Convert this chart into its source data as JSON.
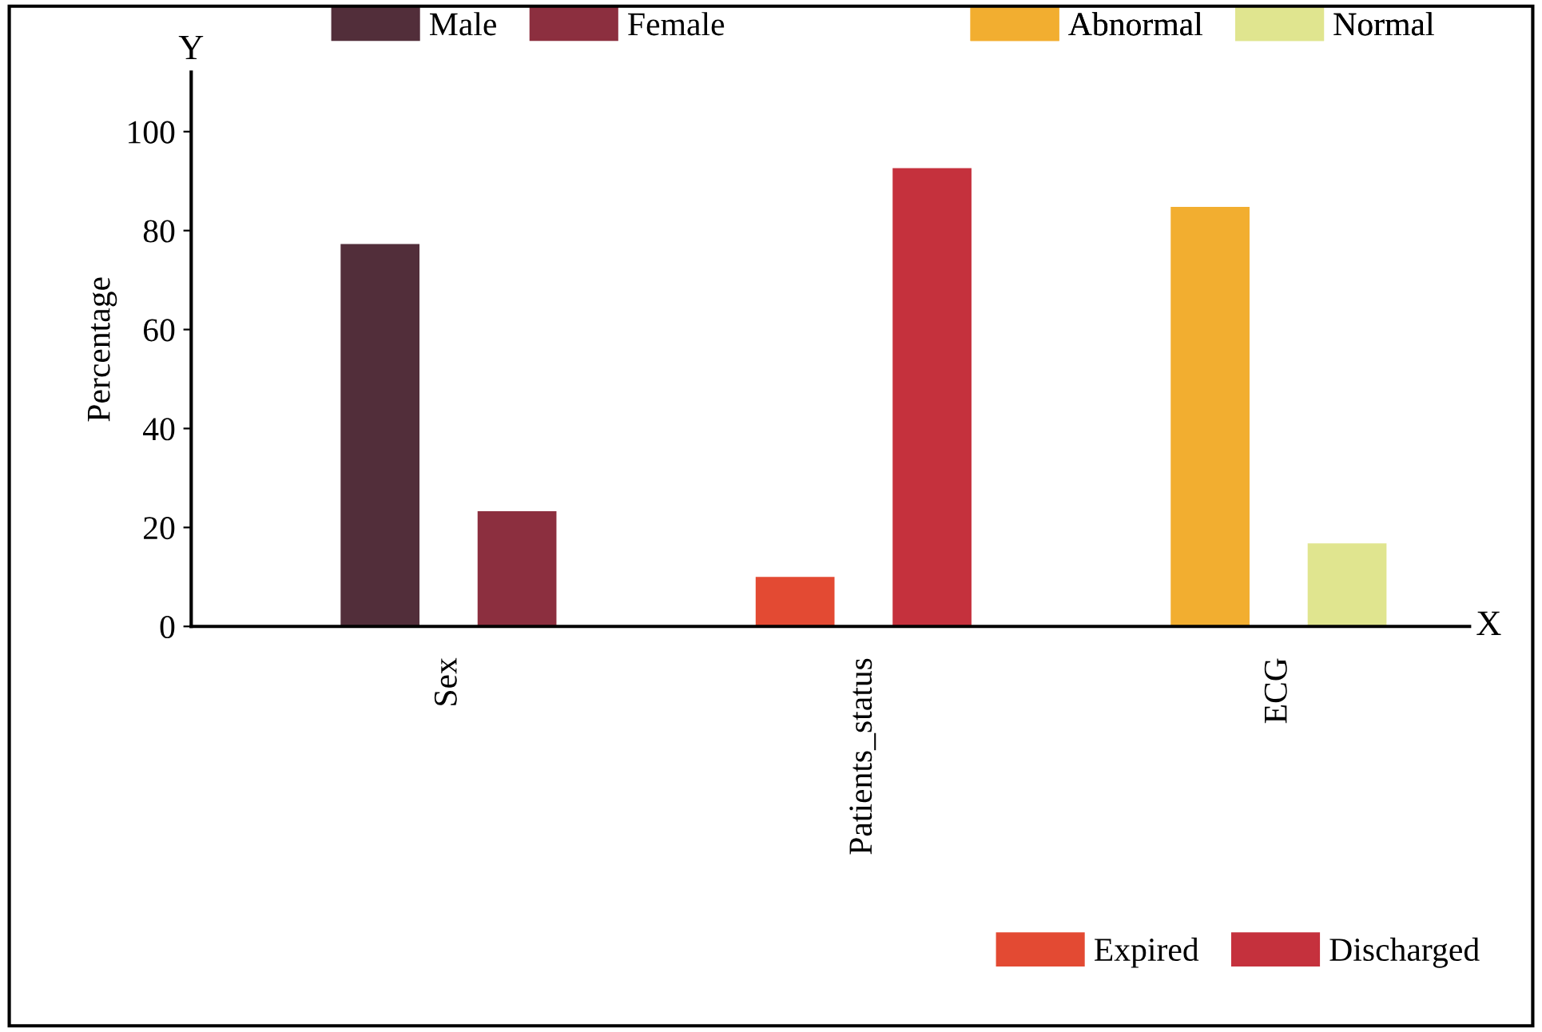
{
  "chart_data": {
    "type": "bar",
    "ylabel": "Percentage",
    "categories": [
      "Sex",
      "Patients_status",
      "ECG"
    ],
    "series": [
      {
        "name": "Male",
        "color": "#522e3a",
        "values": [
          77.3,
          null,
          null
        ]
      },
      {
        "name": "Female",
        "color": "#8c2f3f",
        "values": [
          23.3,
          null,
          null
        ]
      },
      {
        "name": "Expired",
        "color": "#e34a33",
        "values": [
          null,
          10,
          null
        ]
      },
      {
        "name": "Discharged",
        "color": "#c5313d",
        "values": [
          null,
          92.6,
          null
        ]
      },
      {
        "name": "Abnormal",
        "color": "#f2ae30",
        "values": [
          null,
          null,
          84.8
        ]
      },
      {
        "name": "Normal",
        "color": "#e0e58f",
        "values": [
          null,
          null,
          16.8
        ]
      }
    ],
    "ylim": [
      0,
      112
    ],
    "yticks": [
      0,
      20,
      40,
      60,
      80,
      100
    ],
    "grid": false,
    "legend": "right",
    "annotations": [
      "Y",
      "X"
    ]
  }
}
